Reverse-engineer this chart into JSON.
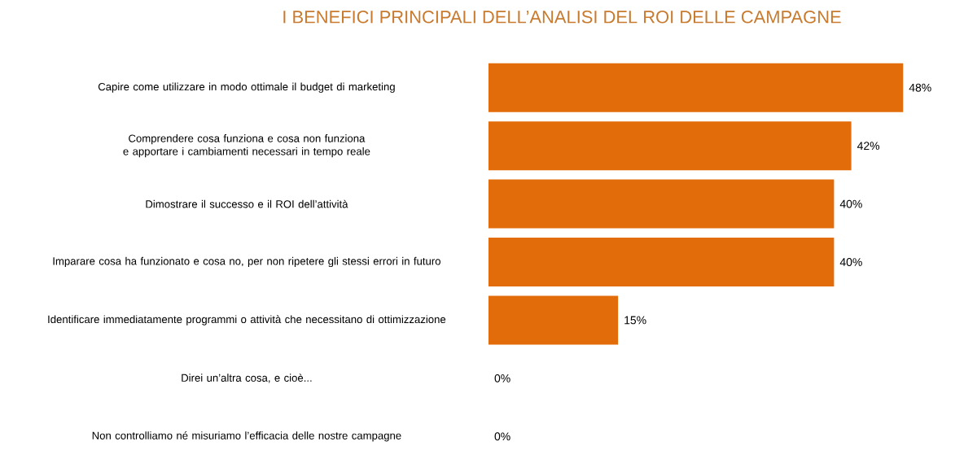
{
  "chart_data": {
    "type": "bar",
    "orientation": "horizontal",
    "title": "I BENEFICI PRINCIPALI DELL’ANALISI DEL ROI DELLE CAMPAGNE",
    "categories": [
      "Capire come utilizzare in modo ottimale il budget di marketing",
      "Comprendere cosa funziona e cosa non funziona e apportare i cambiamenti necessari in tempo reale",
      "Dimostrare il successo e il ROI dell’attività",
      "Imparare cosa ha funzionato e cosa no, per non ripetere gli stessi errori in futuro",
      "Identificare immediatamente programmi o attività che necessitano di ottimizzazione",
      "Direi un’altra cosa, e cioè...",
      "Non controlliamo né misuriamo l’efficacia delle nostre campagne"
    ],
    "values": [
      48,
      42,
      40,
      40,
      15,
      0,
      0
    ],
    "value_labels": [
      "48%",
      "42%",
      "40%",
      "40%",
      "15%",
      "0%",
      "0%"
    ],
    "color": "#e36c0a"
  }
}
